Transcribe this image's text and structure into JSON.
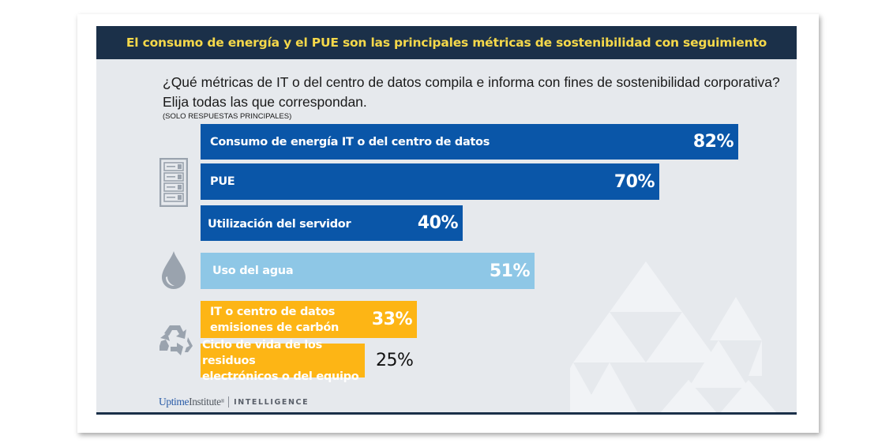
{
  "header": {
    "title": "El consumo de energía y el PUE son las principales métricas de sostenibilidad con seguimiento"
  },
  "question": {
    "line1": "¿Qué métricas de IT o del centro de datos compila e informa con fines de sostenibilidad corporativa?",
    "line2": "Elija todas las que correspondan.",
    "note": "(SOLO RESPUESTAS PRINCIPALES)"
  },
  "colors": {
    "header_bg": "#1b3049",
    "header_text": "#f5d84a",
    "energy": "#0a56a8",
    "water": "#8ec7e6",
    "carbon": "#fdb515",
    "panel_bg": "#e6e9ed",
    "icon_gray": "#9aa3ae"
  },
  "icons": {
    "energy_group": "server-rack-icon",
    "water_group": "water-drop-icon",
    "carbon_group": "recycle-icon"
  },
  "chart_data": {
    "type": "bar",
    "orientation": "horizontal",
    "title": "El consumo de energía y el PUE son las principales métricas de sostenibilidad con seguimiento",
    "subtitle": "¿Qué métricas de IT o del centro de datos compila e informa con fines de sostenibilidad corporativa? Elija todas las que correspondan. (SOLO RESPUESTAS PRINCIPALES)",
    "xlabel": "",
    "ylabel": "",
    "xlim": [
      0,
      100
    ],
    "grid": false,
    "unit": "%",
    "categories": [
      "Consumo de energía IT o del centro de datos",
      "PUE",
      "Utilización del servidor",
      "Uso del agua",
      "IT o centro de datos emisiones de carbón",
      "Ciclo de vida de los residuos electrónicos o del equipo"
    ],
    "values": [
      82,
      70,
      40,
      51,
      33,
      25
    ],
    "value_labels": [
      "82%",
      "70%",
      "40%",
      "51%",
      "33%",
      "25%"
    ],
    "groups": [
      "energy",
      "energy",
      "energy",
      "water",
      "carbon",
      "carbon"
    ],
    "label_lines": [
      [
        "Consumo de energía IT o del centro de datos"
      ],
      [
        "PUE"
      ],
      [
        "Utilización del servidor"
      ],
      [
        "Uso del agua"
      ],
      [
        "IT o centro de datos",
        "emisiones de carbón"
      ],
      [
        "Ciclo de vida de los residuos",
        "electrónicos o del equipo"
      ]
    ]
  },
  "footer": {
    "brand_part1": "Uptime",
    "brand_part2": "Institute",
    "brand_reg": "®",
    "brand_division": "INTELLIGENCE"
  }
}
